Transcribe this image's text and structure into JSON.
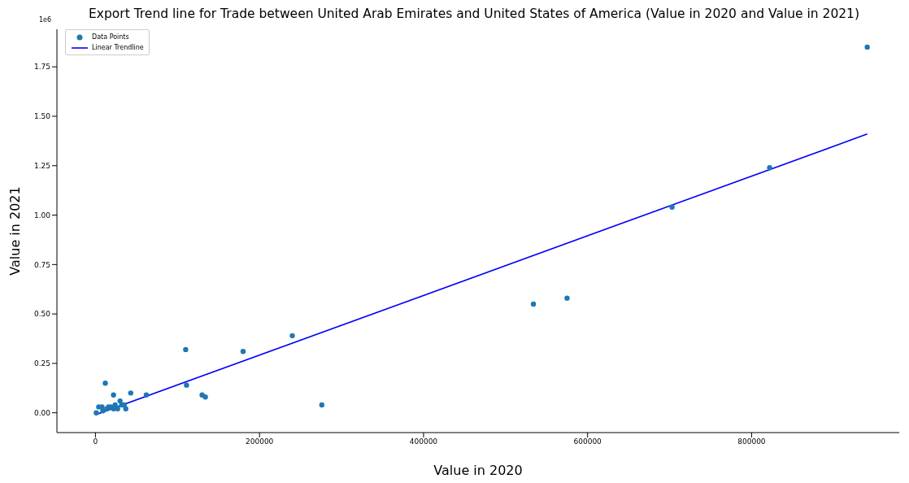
{
  "chart_data": {
    "type": "scatter",
    "title": "Export Trend line for Trade between United Arab Emirates and United States of America (Value in 2020 and Value in 2021)",
    "xlabel": "Value in 2020",
    "ylabel": "Value in 2021",
    "annotations": [
      "1e6"
    ],
    "xlim": [
      -47000,
      980000
    ],
    "xticks": [
      0,
      200000,
      400000,
      600000,
      800000
    ],
    "ylim": [
      -0.1,
      1.94
    ],
    "yticks": [
      {
        "value": 0,
        "label": "0.00"
      },
      {
        "value": 0.25,
        "label": "0.25"
      },
      {
        "value": 0.5,
        "label": "0.50"
      },
      {
        "value": 0.75,
        "label": "0.75"
      },
      {
        "value": 1,
        "label": "1.00"
      },
      {
        "value": 1.25,
        "label": "1.25"
      },
      {
        "value": 1.5,
        "label": "1.50"
      },
      {
        "value": 1.75,
        "label": "1.75"
      }
    ],
    "grid": false,
    "legend": "top left",
    "line_style": "solid",
    "series": [
      {
        "name": "Data Points",
        "type": "scatter",
        "marker": "circle",
        "color": "#1f77b4",
        "x": [
          941000,
          822000,
          703000,
          575000,
          534000,
          240000,
          180000,
          110000,
          111000,
          130000,
          134000,
          276000,
          62000,
          43000,
          12000,
          22000,
          30000,
          37000,
          24000,
          32000,
          27000,
          22000,
          19000,
          16000,
          8000,
          4000,
          1000,
          9000,
          14000,
          35000
        ],
        "values": [
          1.85,
          1.24,
          1.04,
          0.58,
          0.55,
          0.39,
          0.31,
          0.32,
          0.14,
          0.09,
          0.08,
          0.04,
          0.09,
          0.1,
          0.15,
          0.09,
          0.06,
          0.02,
          0.04,
          0.04,
          0.02,
          0.02,
          0.03,
          0.03,
          0.03,
          0.03,
          0.0,
          0.01,
          0.02,
          0.04
        ]
      },
      {
        "name": "Linear Trendline",
        "type": "line",
        "color": "#0000ff",
        "x": [
          0,
          941000
        ],
        "values": [
          -0.01,
          1.41
        ]
      }
    ]
  }
}
